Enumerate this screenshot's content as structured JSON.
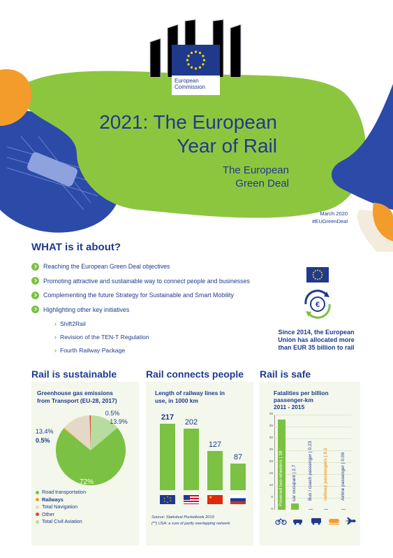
{
  "header": {
    "logo_line1": "European",
    "logo_line2": "Commission",
    "title_line1": "2021: The European",
    "title_line2": "Year of Rail",
    "subtitle_line1": "The European",
    "subtitle_line2": "Green Deal",
    "date": "March 2020",
    "hashtag": "#EUGreenDeal"
  },
  "about": {
    "heading": "WHAT is it about?",
    "items": [
      "Reaching the European Green Deal objectives",
      "Promoting attractive and sustainable way to connect people and businesses",
      "Complementing the future Strategy for Sustainable and Smart Mobility",
      "Highlighting other key initiatives"
    ],
    "subitems": [
      "Shift2Rail",
      "Revision of the TEN-T Regulation",
      "Fourth Railway Package"
    ]
  },
  "funding": {
    "line1": "Since 2014, the European",
    "line2": "Union has allocated more",
    "line3_prefix": "than ",
    "line3_bold": "EUR 35 billion",
    "line3_suffix": " to rail"
  },
  "sections": {
    "sustainable": "Rail is sustainable",
    "connects": "Rail connects people",
    "safe": "Rail is safe"
  },
  "colors": {
    "navy": "#1f3a8c",
    "green": "#7bc143",
    "light_green": "#b6dca0",
    "beige": "#e3d9c6",
    "orange": "#f39c2c",
    "red": "#e3452c",
    "blue_shape": "#2c4aa8"
  },
  "sustainable_chart": {
    "title_line1": "Greenhouse gas emissions",
    "title_line2": "from Transport (EU-28, 2017)",
    "legend": [
      "Road transportation",
      "Railways",
      "Total Navigation",
      "Other",
      "Total Civil Aviation"
    ],
    "chart_data": {
      "type": "pie",
      "title": "Greenhouse gas emissions from Transport (EU-28, 2017)",
      "slices": [
        {
          "name": "Road transportation",
          "label": "72%",
          "value": 72
        },
        {
          "name": "Railways",
          "label": "0.5%",
          "value": 0.5
        },
        {
          "name": "Total Navigation",
          "label": "13.4%",
          "value": 13.4
        },
        {
          "name": "Other",
          "label": "0.5%",
          "value": 0.5
        },
        {
          "name": "Total Civil Aviation",
          "label": "13.9%",
          "value": 13.9
        }
      ]
    }
  },
  "connects_chart": {
    "title_line1": "Length of railway lines in",
    "title_line2": "use, in 1000 km",
    "source": "Source: Statistical Pocketbook 2019",
    "note": "(**) USA: a sum of partly overlapping network",
    "flags": [
      "eu-flag-icon",
      "usa-flag-icon",
      "china-flag-icon",
      "russia-flag-icon"
    ],
    "chart_data": {
      "type": "bar",
      "categories": [
        "EU",
        "USA",
        "China",
        "Russia"
      ],
      "values": [
        217,
        202,
        127,
        87
      ],
      "value_labels": [
        "217",
        "202",
        "127",
        "87"
      ]
    }
  },
  "safe_chart": {
    "title_line1": "Fatalities per billion",
    "title_line2": "passenger-km",
    "title_line3": "2011 - 2015",
    "icons": [
      "motorcycle-icon",
      "car-icon",
      "bus-icon",
      "train-icon",
      "plane-icon"
    ],
    "chart_data": {
      "type": "bar",
      "ylim": [
        0,
        40
      ],
      "yticks": [
        "0",
        "5",
        "10",
        "15",
        "20",
        "25",
        "30",
        "35",
        "40"
      ],
      "categories": [
        "Powered two-wheelers | 38",
        "car occupant | 2.7",
        "Bus / coach passenger | 0.23",
        "railway passengers | 0.1",
        "Airline passenger | 0.06"
      ],
      "values": [
        38,
        2.7,
        0.23,
        0.1,
        0.06
      ]
    }
  }
}
